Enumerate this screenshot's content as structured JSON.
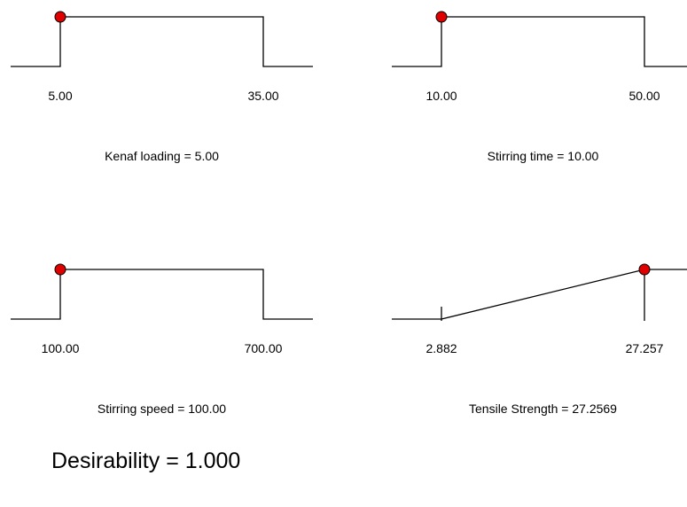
{
  "chart_data": [
    {
      "type": "line",
      "chart_kind": "desirability-ramp",
      "variable": "Kenaf loading",
      "low": 5.0,
      "high": 35.0,
      "low_label": "5.00",
      "high_label": "35.00",
      "current": 5.0,
      "shape": "in-range",
      "caption": "Kenaf loading = 5.00",
      "marker_color": "#e00000"
    },
    {
      "type": "line",
      "chart_kind": "desirability-ramp",
      "variable": "Stirring time",
      "low": 10.0,
      "high": 50.0,
      "low_label": "10.00",
      "high_label": "50.00",
      "current": 10.0,
      "shape": "in-range",
      "caption": "Stirring time = 10.00",
      "marker_color": "#e00000"
    },
    {
      "type": "line",
      "chart_kind": "desirability-ramp",
      "variable": "Stirring speed",
      "low": 100.0,
      "high": 700.0,
      "low_label": "100.00",
      "high_label": "700.00",
      "current": 100.0,
      "shape": "in-range",
      "caption": "Stirring speed = 100.00",
      "marker_color": "#e00000"
    },
    {
      "type": "line",
      "chart_kind": "desirability-ramp",
      "variable": "Tensile Strength",
      "low": 2.882,
      "high": 27.257,
      "low_label": "2.882",
      "high_label": "27.257",
      "current": 27.2569,
      "shape": "maximize",
      "caption": "Tensile Strength = 27.2569",
      "marker_color": "#e00000"
    }
  ],
  "desirability": "Desirability = 1.000"
}
